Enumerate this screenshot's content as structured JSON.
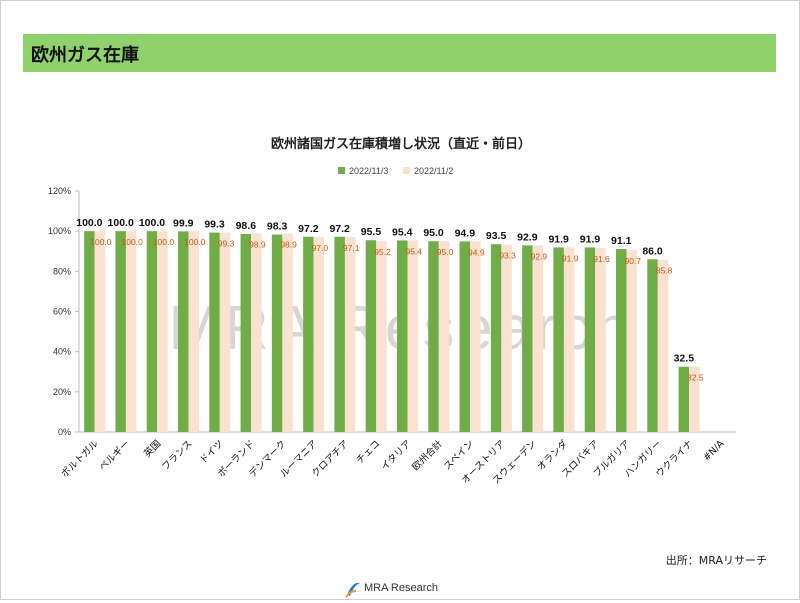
{
  "page": {
    "title": "欧州ガス在庫",
    "source": "出所：MRAリサーチ",
    "logo_text": "MRA Research",
    "watermark": "MRA Research"
  },
  "colors": {
    "header_bg": "#8fd16a",
    "series_current": "#70ad47",
    "series_previous": "#fbe1d0",
    "label_previous": "#c55a11"
  },
  "chart_data": {
    "type": "bar",
    "title": "欧州諸国ガス在庫積増し状況（直近・前日）",
    "legend_position": "top",
    "ylim": [
      0,
      120
    ],
    "ytick_labels": [
      "0%",
      "20%",
      "40%",
      "60%",
      "80%",
      "100%",
      "120%"
    ],
    "yticks": [
      0,
      20,
      40,
      60,
      80,
      100,
      120
    ],
    "grid": false,
    "categories": [
      "ポルトガル",
      "ベルギー",
      "英国",
      "フランス",
      "ドイツ",
      "ポーランド",
      "デンマーク",
      "ルーマニア",
      "クロアチア",
      "チェコ",
      "イタリア",
      "欧州合計",
      "スペイン",
      "オーストリア",
      "スウェーデン",
      "オランダ",
      "スロバキア",
      "ブルガリア",
      "ハンガリー",
      "ウクライナ",
      "#N/A"
    ],
    "series": [
      {
        "name": "2022/11/3",
        "values": [
          100.0,
          100.0,
          100.0,
          99.9,
          99.3,
          98.6,
          98.3,
          97.2,
          97.2,
          95.5,
          95.4,
          95.0,
          94.9,
          93.5,
          92.9,
          91.9,
          91.9,
          91.1,
          86.0,
          32.5,
          null
        ],
        "labels": [
          "100.0",
          "100.0",
          "100.0",
          "99.9",
          "99.3",
          "98.6",
          "98.3",
          "97.2",
          "97.2",
          "95.5",
          "95.4",
          "95.0",
          "94.9",
          "93.5",
          "92.9",
          "91.9",
          "91.9",
          "91.1",
          "86.0",
          "32.5",
          ""
        ]
      },
      {
        "name": "2022/11/2",
        "values": [
          100.0,
          100.0,
          100.0,
          100.0,
          99.3,
          98.9,
          98.9,
          97.0,
          97.1,
          95.2,
          95.4,
          95.0,
          94.9,
          93.3,
          92.9,
          91.9,
          91.6,
          90.7,
          85.8,
          32.5,
          null
        ],
        "labels": [
          "100.0",
          "100.0",
          "100.0",
          "100.0",
          "99.3",
          "98.9",
          "98.9",
          "97.0",
          "97.1",
          "95.2",
          "95.4",
          "95.0",
          "94.9",
          "93.3",
          "92.9",
          "91.9",
          "91.6",
          "90.7",
          "85.8",
          "32.5",
          ""
        ]
      }
    ]
  }
}
